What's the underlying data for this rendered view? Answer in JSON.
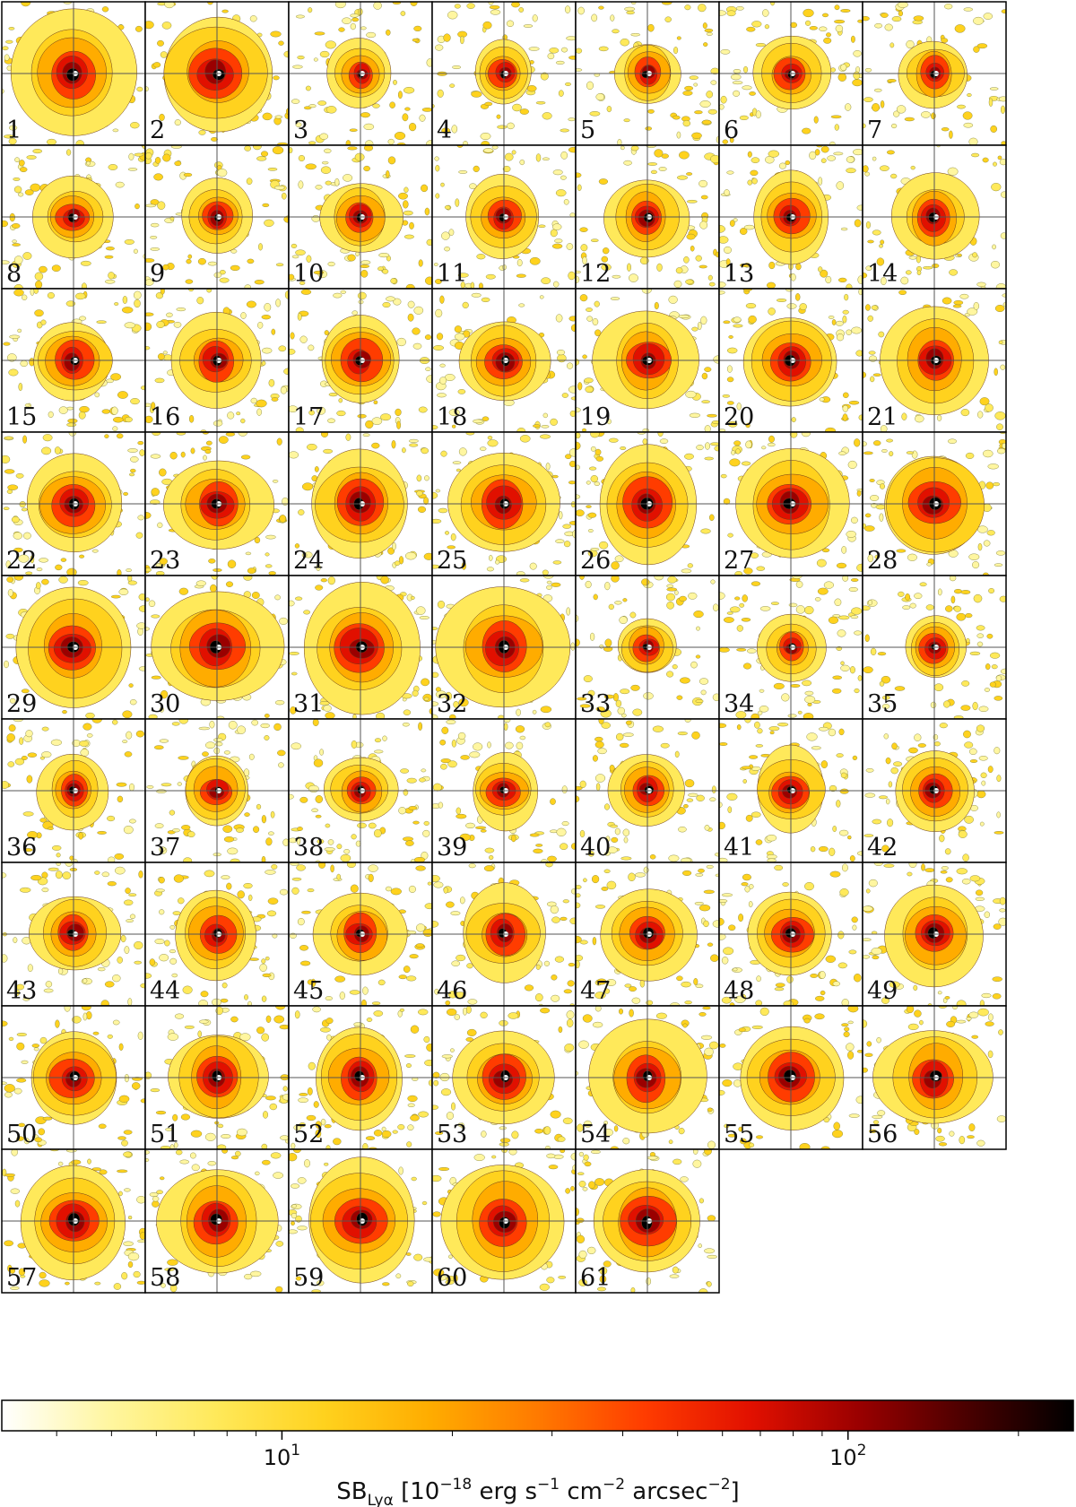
{
  "figure": {
    "panel_labels": [
      "1",
      "2",
      "3",
      "4",
      "5",
      "6",
      "7",
      "8",
      "9",
      "10",
      "11",
      "12",
      "13",
      "14",
      "15",
      "16",
      "17",
      "18",
      "19",
      "20",
      "21",
      "22",
      "23",
      "24",
      "25",
      "26",
      "27",
      "28",
      "29",
      "30",
      "31",
      "32",
      "33",
      "34",
      "35",
      "36",
      "37",
      "38",
      "39",
      "40",
      "41",
      "42",
      "43",
      "44",
      "45",
      "46",
      "47",
      "48",
      "49",
      "50",
      "51",
      "52",
      "53",
      "54",
      "55",
      "56",
      "57",
      "58",
      "59",
      "60",
      "61"
    ],
    "grid": {
      "columns": 7,
      "rows": 9
    },
    "colormap": [
      "#ffffff",
      "#fff6a0",
      "#ffe95a",
      "#ffd21e",
      "#ffac00",
      "#ff7a00",
      "#ff3c00",
      "#e11000",
      "#9a0000",
      "#4a0000",
      "#000000"
    ],
    "crosshair_color": "#555555"
  },
  "colorbar": {
    "scale": "log",
    "range": [
      3.2,
      250
    ],
    "ticks": [
      {
        "value": 10,
        "base": "10",
        "exp": "1"
      },
      {
        "value": 100,
        "base": "10",
        "exp": "2"
      }
    ],
    "label_main": "SB",
    "label_sub": "Lyα",
    "label_unit_pre": " [10",
    "label_unit_exp1": "−18",
    "label_unit_mid": " erg s",
    "label_unit_exp2": "−1",
    "label_unit_mid2": " cm",
    "label_unit_exp3": "−2",
    "label_unit_mid3": " arcsec",
    "label_unit_exp4": "−2",
    "label_unit_post": "]"
  }
}
